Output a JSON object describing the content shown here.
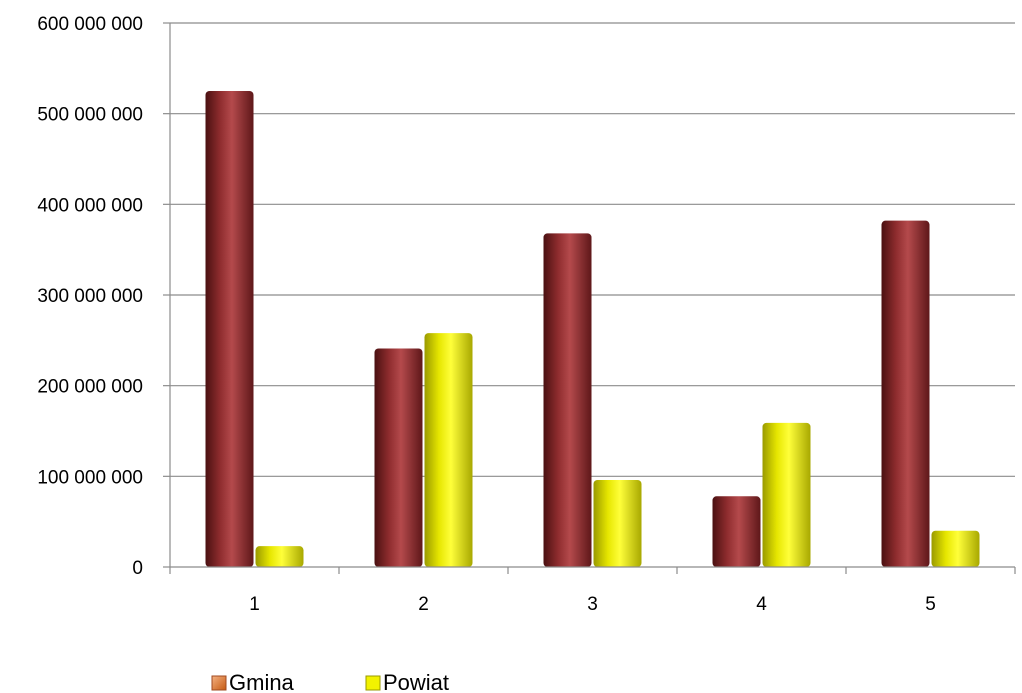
{
  "chart_data": {
    "type": "bar",
    "title": "",
    "xlabel": "",
    "ylabel": "",
    "categories": [
      "1",
      "2",
      "3",
      "4",
      "5"
    ],
    "series": [
      {
        "name": "Gmina",
        "color": "#9b3234",
        "values": [
          525000000,
          241000000,
          368000000,
          78000000,
          382000000
        ]
      },
      {
        "name": "Powiat",
        "color": "#f2f200",
        "values": [
          23000000,
          258000000,
          96000000,
          159000000,
          40000000
        ]
      }
    ],
    "ylim": [
      0,
      600000000
    ],
    "yticks": [
      0,
      100000000,
      200000000,
      300000000,
      400000000,
      500000000,
      600000000
    ],
    "ytick_labels": [
      "0",
      "100 000 000",
      "200 000 000",
      "300 000 000",
      "400 000 000",
      "500 000 000",
      "600 000 000"
    ],
    "grid": true,
    "legend_position": "bottom-left"
  }
}
